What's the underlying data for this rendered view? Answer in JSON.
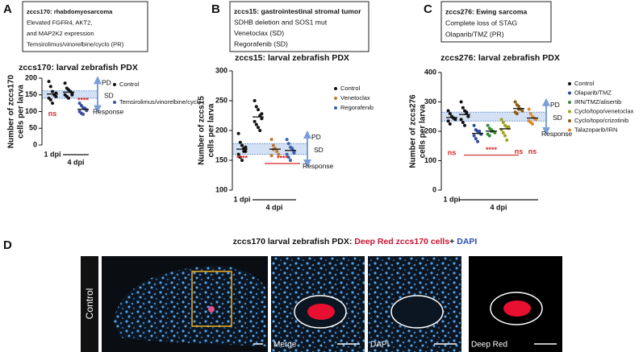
{
  "chart_data": [
    {
      "type": "dot",
      "letter": "A",
      "box": [
        "zccs170: rhabdomyosarcoma",
        "Elevated FGFR4, AKT2,",
        "and MAP2K2 expression",
        "Temsirolimus/vinorelbine/cyclo (PR)"
      ],
      "title": "zccs170: larval zebrafish PDX",
      "ylabel": [
        "Number of zccs170",
        "cells per larva"
      ],
      "ylim": [
        0,
        200
      ],
      "yticks": [
        0,
        50,
        100,
        150,
        200
      ],
      "band": [
        140,
        162
      ],
      "xlabels": [
        "1 dpi",
        "4 dpi"
      ],
      "arrow_labels": [
        "PD",
        "SD",
        "Response"
      ],
      "annotations": [
        {
          "text": "ns",
          "color": "#d62728"
        },
        {
          "text": "****",
          "color": "#d62728"
        }
      ],
      "series": [
        {
          "name": "Control",
          "color": "#111111",
          "values": [
            [
              190,
              175,
              160,
              150,
              145,
              140,
              135,
              125,
              150,
              155
            ],
            [
              185,
              170,
              165,
              160,
              155,
              150,
              145,
              140,
              160,
              150
            ]
          ]
        },
        {
          "name": "Temsirolimus/vinorelbine/cyclo",
          "color": "#3a4fa0",
          "values": [
            [
              125,
              118,
              112,
              108,
              105,
              100,
              95,
              92,
              110,
              103
            ]
          ]
        }
      ]
    },
    {
      "type": "dot",
      "letter": "B",
      "box": [
        "zccs15: gastrointestinal stromal tumor",
        "SDHB deletion and SOS1 mut",
        "Venetoclax (SD)",
        "Regorafenib (SD)"
      ],
      "title": "zccs15: larval zebrafish PDX",
      "ylabel": [
        "Number of zccs15",
        "cells per larva"
      ],
      "ylim": [
        100,
        300
      ],
      "yticks": [
        100,
        150,
        200,
        250,
        300
      ],
      "band": [
        160,
        178
      ],
      "xlabels": [
        "1 dpi",
        "4 dpi"
      ],
      "arrow_labels": [
        "PD",
        "SD",
        "Response"
      ],
      "annotations": [
        {
          "text": "****",
          "color": "#d62728"
        },
        {
          "text": "****",
          "color": "#d62728"
        }
      ],
      "series": [
        {
          "name": "Control",
          "color": "#111111",
          "values": [
            [
              195,
              180,
              175,
              170,
              165,
              160,
              155,
              150,
              165,
              172
            ],
            [
              250,
              240,
              235,
              225,
              220,
              215,
              210,
              205,
              200,
              228
            ]
          ]
        },
        {
          "name": "Venetoclax",
          "color": "#c07830",
          "values": [
            [
              185,
              175,
              170,
              165,
              160,
              158,
              168
            ]
          ]
        },
        {
          "name": "Regorafenib",
          "color": "#3a5fb0",
          "values": [
            [
              185,
              178,
              172,
              168,
              165,
              160,
              155,
              150,
              170,
              162
            ]
          ]
        }
      ]
    },
    {
      "type": "dot",
      "letter": "C",
      "box": [
        "zccs276: Ewing sarcoma",
        "Complete loss of STAG",
        "Olaparib/TMZ (PR)"
      ],
      "title": "zccs276: larval zebrafish PDX",
      "ylabel": [
        "Number of zccs276",
        "cells per larva"
      ],
      "ylim": [
        0,
        400
      ],
      "yticks": [
        0,
        100,
        200,
        300,
        400
      ],
      "band": [
        235,
        265
      ],
      "xlabels": [
        "1 dpi",
        "4 dpi"
      ],
      "arrow_labels": [
        "PD",
        "SD",
        "Response"
      ],
      "annotations": [
        {
          "text": "ns",
          "color": "#d62728"
        },
        {
          "text": "****",
          "color": "#d62728"
        },
        {
          "text": "ns",
          "color": "#d62728"
        },
        {
          "text": "ns",
          "color": "#d62728"
        }
      ],
      "series": [
        {
          "name": "Control",
          "color": "#111111",
          "values": [
            [
              270,
              260,
              250,
              245,
              240,
              235,
              225,
              250,
              245
            ],
            [
              300,
              280,
              270,
              260,
              250,
              240,
              230,
              220,
              265
            ]
          ]
        },
        {
          "name": "Olaparib/TMZ",
          "color": "#2e4a9e",
          "values": [
            [
              220,
              205,
              200,
              195,
              190,
              185,
              175,
              165,
              200
            ]
          ]
        },
        {
          "name": "IRN/TMZ/alisertib",
          "color": "#3a8a3a",
          "values": [
            [
              220,
              210,
              205,
              200,
              195,
              190,
              185,
              200
            ]
          ]
        },
        {
          "name": "Cyclo/topo/venetoclax",
          "color": "#a0a020",
          "values": [
            [
              240,
              230,
              220,
              215,
              210,
              205,
              195,
              185,
              170,
              215
            ]
          ]
        },
        {
          "name": "Cyclo/topo/crizotinib",
          "color": "#8b5a1a",
          "values": [
            [
              300,
              290,
              285,
              275,
              270,
              265,
              260,
              275
            ]
          ]
        },
        {
          "name": "Talazoparib/IRN",
          "color": "#e08a2a",
          "values": [
            [
              275,
              260,
              250,
              245,
              240,
              235,
              230,
              225,
              245
            ]
          ]
        }
      ]
    }
  ],
  "panel_d": {
    "letter": "D",
    "title": [
      "zccs170 larval zebrafish PDX: ",
      "Deep Red zccs170 cells",
      "+ ",
      "DAPI"
    ],
    "row_label": "Control",
    "image_labels": [
      "Merge",
      "DAPI",
      "Deep Red"
    ]
  }
}
